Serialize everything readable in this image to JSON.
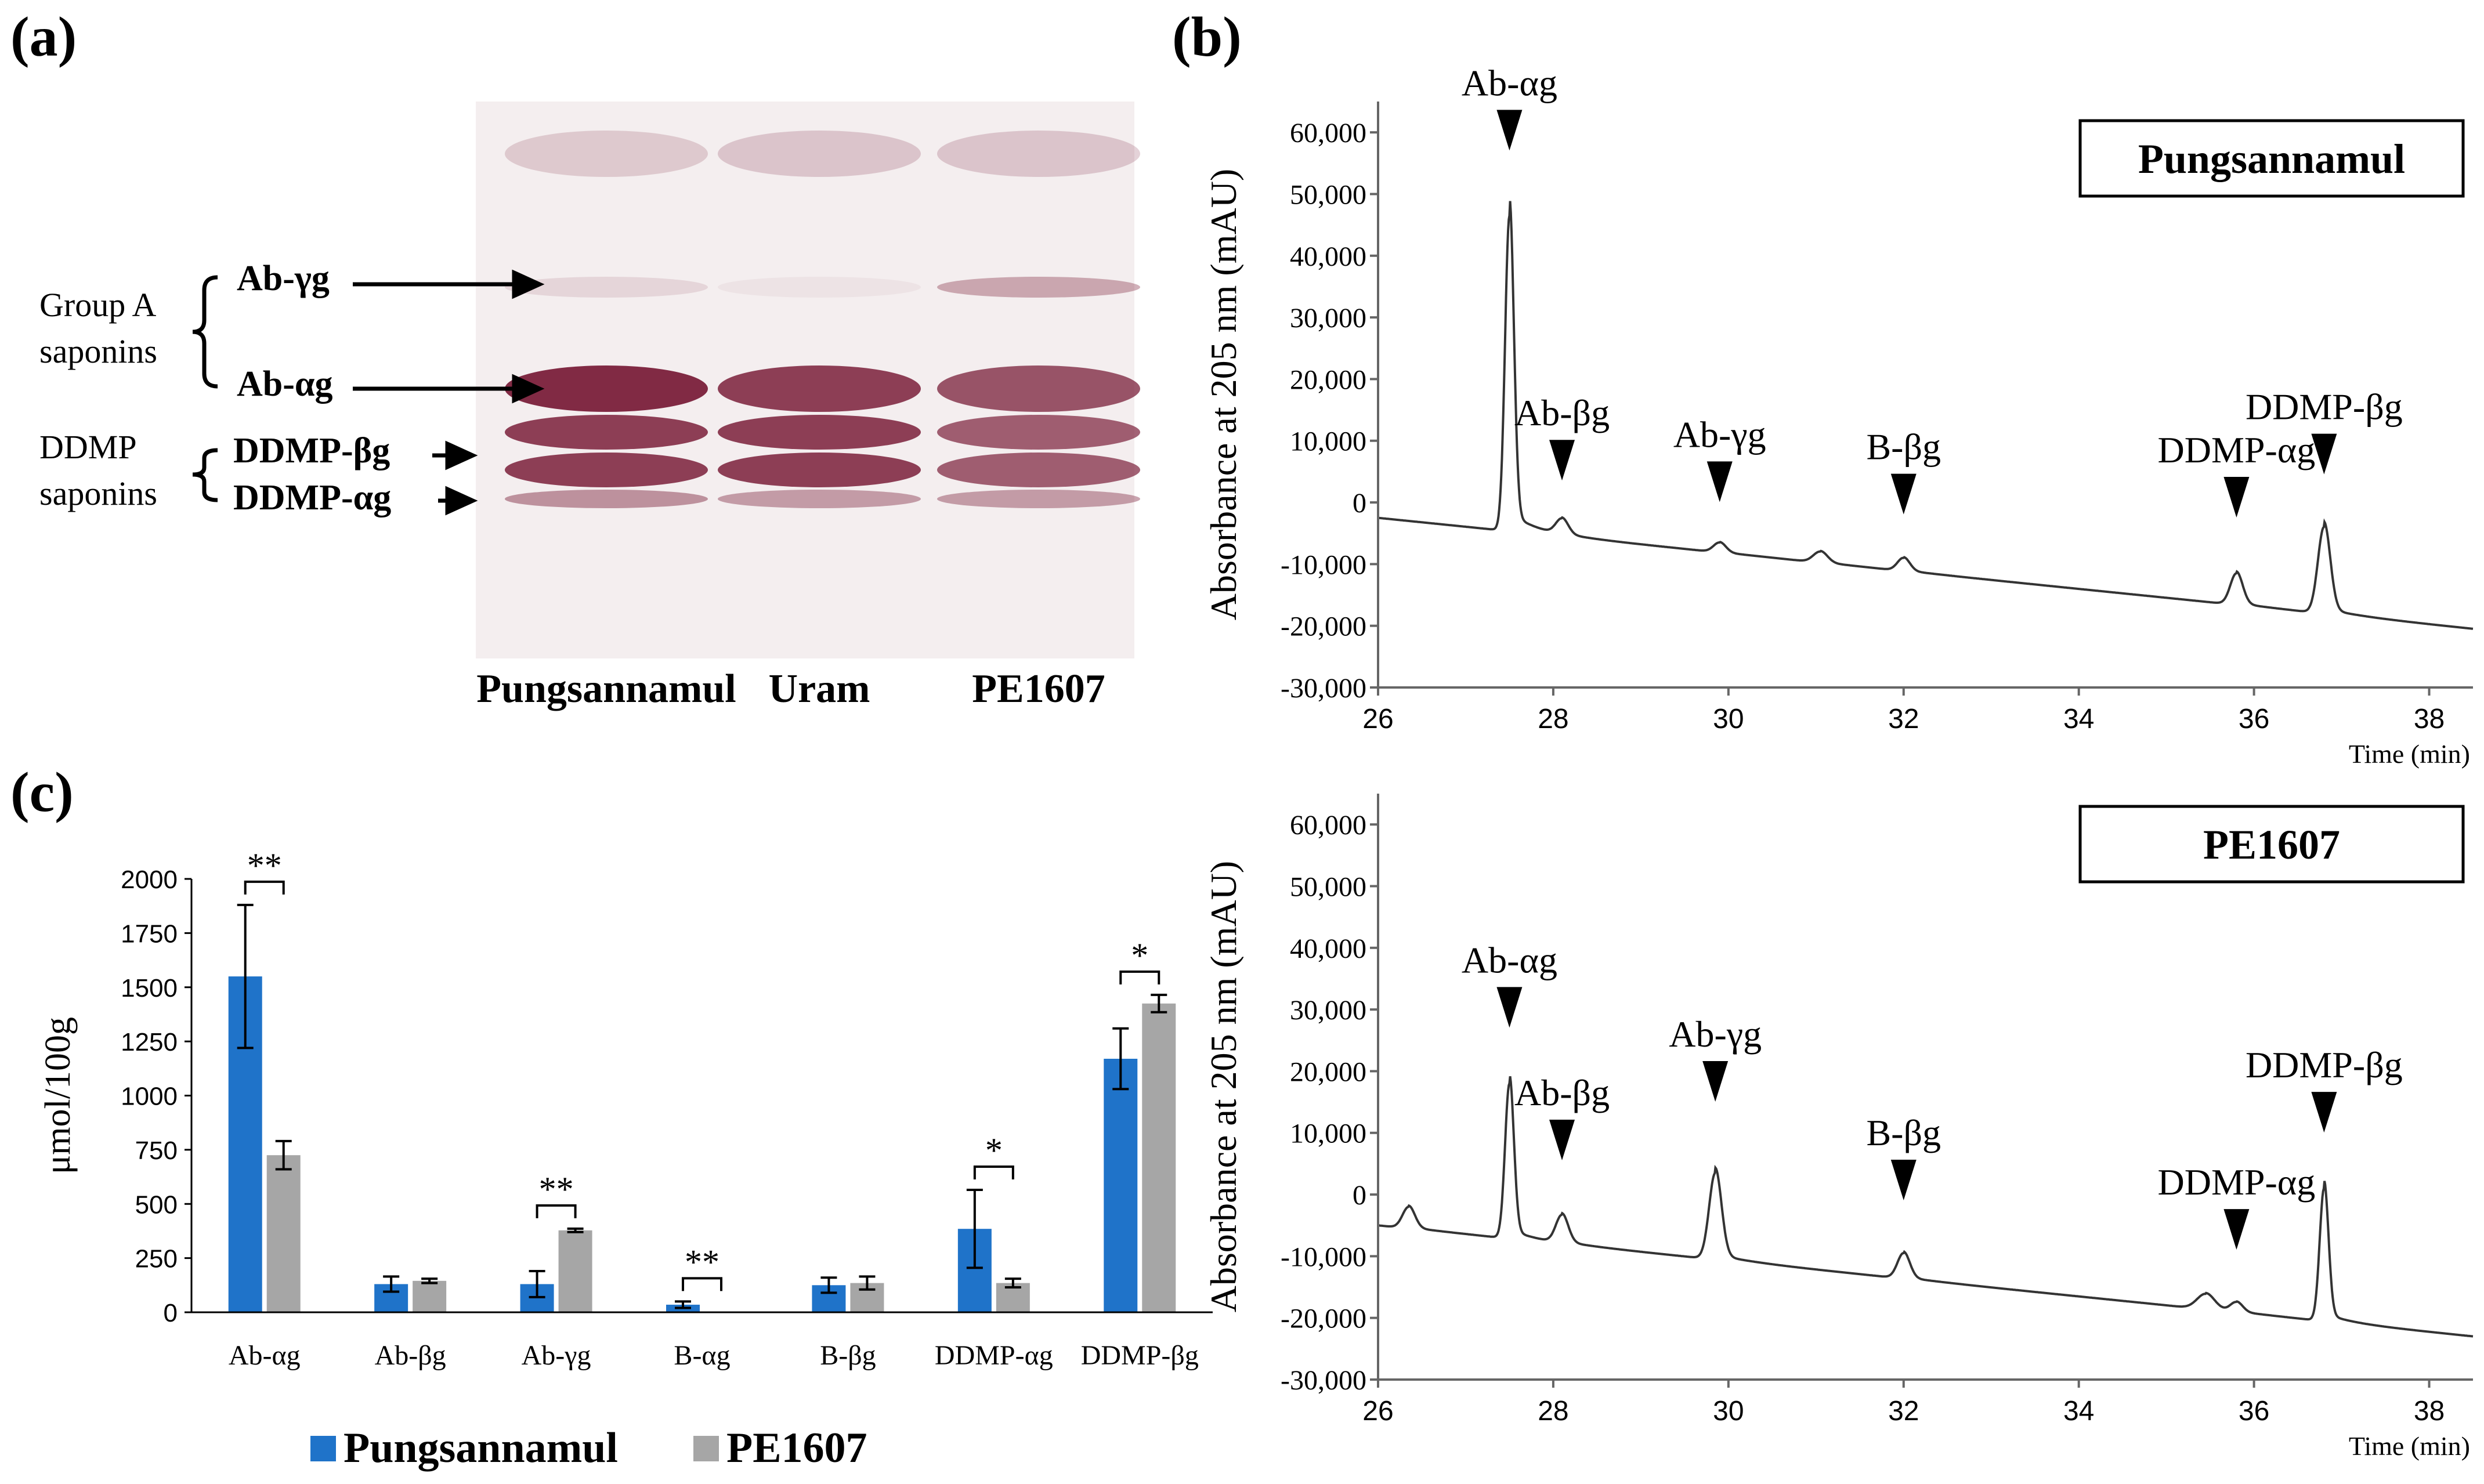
{
  "panel_labels": {
    "a": "(a)",
    "b": "(b)",
    "c": "(c)"
  },
  "gel": {
    "group_labels": [
      "Group A",
      "saponins",
      "DDMP",
      "saponins"
    ],
    "band_labels": [
      "Ab-γg",
      "Ab-αg",
      "DDMP-βg",
      "DDMP-αg"
    ],
    "lanes": [
      "Pungsannamul",
      "Uram",
      "PE1607"
    ],
    "band_color": "#7a1f3a",
    "background_color": "#f4eeef"
  },
  "colors": {
    "pungsannamul": "#1f73c9",
    "pe1607": "#a6a6a6"
  },
  "chart_data": [
    {
      "type": "line",
      "title": "Pungsannamul",
      "xlabel": "Time (min)",
      "ylabel": "Absorbance at 205 nm (mAU)",
      "xlim": [
        26,
        38.5
      ],
      "ylim": [
        -30000,
        65000
      ],
      "xticks": [
        "26",
        "28",
        "30",
        "32",
        "34",
        "36",
        "38"
      ],
      "yticks": [
        "60,000",
        "50,000",
        "40,000",
        "30,000",
        "20,000",
        "10,000",
        "0",
        "-10,000",
        "-20,000",
        "-30,000"
      ],
      "baseline": {
        "start": [
          26,
          -2500
        ],
        "end": [
          38.5,
          -20500
        ]
      },
      "peaks": [
        {
          "label": "Ab-αg",
          "x": 27.5,
          "y": 46500,
          "arrow_y": 58000
        },
        {
          "label": "Ab-βg",
          "x": 28.1,
          "y": -3000,
          "arrow_y": 4500
        },
        {
          "label": "Ab-γg",
          "x": 29.9,
          "y": -6500,
          "arrow_y": 1000
        },
        {
          "label": "B-βg",
          "x": 32.0,
          "y": -9000,
          "arrow_y": -1000
        },
        {
          "label": "DDMP-αg",
          "x": 35.8,
          "y": -11500,
          "arrow_y": -1500
        },
        {
          "label": "DDMP-βg",
          "x": 36.8,
          "y": -4000,
          "arrow_y": 5500
        }
      ]
    },
    {
      "type": "line",
      "title": "PE1607",
      "xlabel": "Time (min)",
      "ylabel": "Absorbance at 205 nm (mAU)",
      "xlim": [
        26,
        38.5
      ],
      "ylim": [
        -30000,
        65000
      ],
      "xticks": [
        "26",
        "28",
        "30",
        "32",
        "34",
        "36",
        "38"
      ],
      "yticks": [
        "60,000",
        "50,000",
        "40,000",
        "30,000",
        "20,000",
        "10,000",
        "0",
        "-10,000",
        "-20,000",
        "-30,000"
      ],
      "baseline": {
        "start": [
          26,
          -5000
        ],
        "end": [
          38.5,
          -23000
        ]
      },
      "peaks": [
        {
          "label": "Ab-αg",
          "x": 27.5,
          "y": 18000,
          "arrow_y": 28000
        },
        {
          "label": "Ab-βg",
          "x": 28.1,
          "y": -3500,
          "arrow_y": 6500
        },
        {
          "label": "Ab-γg",
          "x": 29.85,
          "y": 3500,
          "arrow_y": 16000
        },
        {
          "label": "B-βg",
          "x": 32.0,
          "y": -9500,
          "arrow_y": 0
        },
        {
          "label": "DDMP-αg",
          "x": 35.8,
          "y": -17500,
          "arrow_y": -8000
        },
        {
          "label": "DDMP-βg",
          "x": 36.8,
          "y": 1000,
          "arrow_y": 11000
        }
      ]
    },
    {
      "type": "bar",
      "categories": [
        "Ab-αg",
        "Ab-βg",
        "Ab-γg",
        "B-αg",
        "B-βg",
        "DDMP-αg",
        "DDMP-βg"
      ],
      "ylabel": "μmol/100g",
      "ylim": [
        0,
        2000
      ],
      "yticks": [
        "0",
        "250",
        "500",
        "750",
        "1000",
        "1250",
        "1500",
        "1750",
        "2000"
      ],
      "series": [
        {
          "name": "Pungsannamul",
          "values": [
            1550,
            130,
            130,
            35,
            125,
            385,
            1170
          ],
          "errors": [
            330,
            35,
            60,
            15,
            35,
            180,
            140
          ]
        },
        {
          "name": "PE1607",
          "values": [
            725,
            145,
            378,
            0,
            135,
            135,
            1425
          ],
          "errors": [
            65,
            10,
            8,
            0,
            30,
            20,
            40
          ]
        }
      ],
      "significance": [
        "**",
        "",
        "**",
        "**",
        "",
        "*",
        "*"
      ],
      "legend": "bottom"
    }
  ]
}
